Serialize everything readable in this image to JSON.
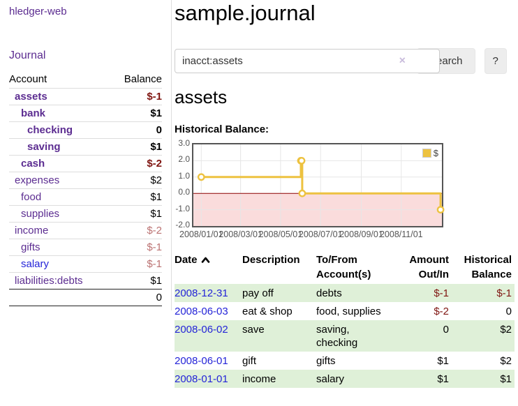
{
  "colors": {
    "link_purple": "#5c2d91",
    "link_blue": "#2424d8",
    "negative_dark": "#7f1511",
    "negative_light": "#bb7272",
    "row_stripe_green": "#dff0d8",
    "series_gold": "#edc240",
    "negative_area_pink": "#fadcdc",
    "zero_line_red": "#8b0000",
    "grid_gray": "#e6e6e6",
    "axis_text": "#545454"
  },
  "sidebar": {
    "brand": "hledger-web",
    "nav_journal": "Journal",
    "accounts": {
      "col_account": "Account",
      "col_balance": "Balance",
      "rows": [
        {
          "name": "assets",
          "balance": "$-1",
          "indent": 0,
          "bold": true,
          "neg": "dark",
          "link": "purple"
        },
        {
          "name": "bank",
          "balance": "$1",
          "indent": 1,
          "bold": true,
          "neg": "none",
          "link": "purple"
        },
        {
          "name": "checking",
          "balance": "0",
          "indent": 2,
          "bold": true,
          "neg": "none",
          "link": "purple"
        },
        {
          "name": "saving",
          "balance": "$1",
          "indent": 2,
          "bold": true,
          "neg": "none",
          "link": "purple"
        },
        {
          "name": "cash",
          "balance": "$-2",
          "indent": 1,
          "bold": true,
          "neg": "dark",
          "link": "purple"
        },
        {
          "name": "expenses",
          "balance": "$2",
          "indent": 0,
          "bold": false,
          "neg": "none",
          "link": "purple"
        },
        {
          "name": "food",
          "balance": "$1",
          "indent": 1,
          "bold": false,
          "neg": "none",
          "link": "purple"
        },
        {
          "name": "supplies",
          "balance": "$1",
          "indent": 1,
          "bold": false,
          "neg": "none",
          "link": "purple"
        },
        {
          "name": "income",
          "balance": "$-2",
          "indent": 0,
          "bold": false,
          "neg": "light",
          "link": "purple"
        },
        {
          "name": "gifts",
          "balance": "$-1",
          "indent": 1,
          "bold": false,
          "neg": "light",
          "link": "purple"
        },
        {
          "name": "salary",
          "balance": "$-1",
          "indent": 1,
          "bold": false,
          "neg": "light",
          "link": "blue"
        },
        {
          "name": "liabilities:debts",
          "balance": "$1",
          "indent": 0,
          "bold": false,
          "neg": "none",
          "link": "purple"
        }
      ],
      "total": "0"
    }
  },
  "header": {
    "title": "sample.journal"
  },
  "search": {
    "value": "inacct:assets",
    "clear_icon": "×",
    "search_button": "Search",
    "help_button": "?"
  },
  "account_view": {
    "heading": "assets",
    "chart_title": "Historical Balance:"
  },
  "chart_data": {
    "type": "line",
    "step": true,
    "title": "Historical Balance:",
    "ylim": [
      -2,
      3
    ],
    "xlim_days": [
      -12,
      367
    ],
    "epoch": "2008-01-01",
    "legend": {
      "label": "$",
      "position": "top-right"
    },
    "zero_line_color": "#8b0000",
    "negative_fill": "#fadcdc",
    "y_ticks": [
      {
        "v": 3,
        "label": "3.0"
      },
      {
        "v": 2,
        "label": "2.0"
      },
      {
        "v": 1,
        "label": "1.0"
      },
      {
        "v": 0,
        "label": "0.0"
      },
      {
        "v": -1,
        "label": "-1.0"
      },
      {
        "v": -2,
        "label": "-2.0"
      }
    ],
    "y_grid": [
      2,
      1,
      -1
    ],
    "x_ticks": [
      {
        "date": "2008-01-01",
        "label": "2008/01/01"
      },
      {
        "date": "2008-03-01",
        "label": "2008/03/01"
      },
      {
        "date": "2008-05-01",
        "label": "2008/05/01"
      },
      {
        "date": "2008-07-01",
        "label": "2008/07/01"
      },
      {
        "date": "2008-09-01",
        "label": "2008/09/01"
      },
      {
        "date": "2008-11-01",
        "label": "2008/11/01"
      }
    ],
    "series": [
      {
        "name": "$",
        "color": "#edc240",
        "points": [
          [
            "2008-01-01",
            1
          ],
          [
            "2008-06-01",
            2
          ],
          [
            "2008-06-02",
            2
          ],
          [
            "2008-06-03",
            0
          ],
          [
            "2008-12-31",
            -1
          ]
        ]
      }
    ]
  },
  "transactions": {
    "headers": {
      "date": "Date",
      "description": "Description",
      "accounts": "To/From Account(s)",
      "amount": "Amount Out/In",
      "balance": "Historical Balance"
    },
    "rows": [
      {
        "date": "2008-12-31",
        "description": "pay off",
        "accounts": "debts",
        "amount": "$-1",
        "amount_neg": true,
        "balance": "$-1",
        "balance_neg": true,
        "striped": true
      },
      {
        "date": "2008-06-03",
        "description": "eat & shop",
        "accounts": "food, supplies",
        "amount": "$-2",
        "amount_neg": true,
        "balance": "0",
        "balance_neg": false,
        "striped": false
      },
      {
        "date": "2008-06-02",
        "description": "save",
        "accounts": "saving,\nchecking",
        "amount": "0",
        "amount_neg": false,
        "balance": "$2",
        "balance_neg": false,
        "striped": true
      },
      {
        "date": "2008-06-01",
        "description": "gift",
        "accounts": "gifts",
        "amount": "$1",
        "amount_neg": false,
        "balance": "$2",
        "balance_neg": false,
        "striped": false
      },
      {
        "date": "2008-01-01",
        "description": "income",
        "accounts": "salary",
        "amount": "$1",
        "amount_neg": false,
        "balance": "$1",
        "balance_neg": false,
        "striped": true
      }
    ]
  }
}
